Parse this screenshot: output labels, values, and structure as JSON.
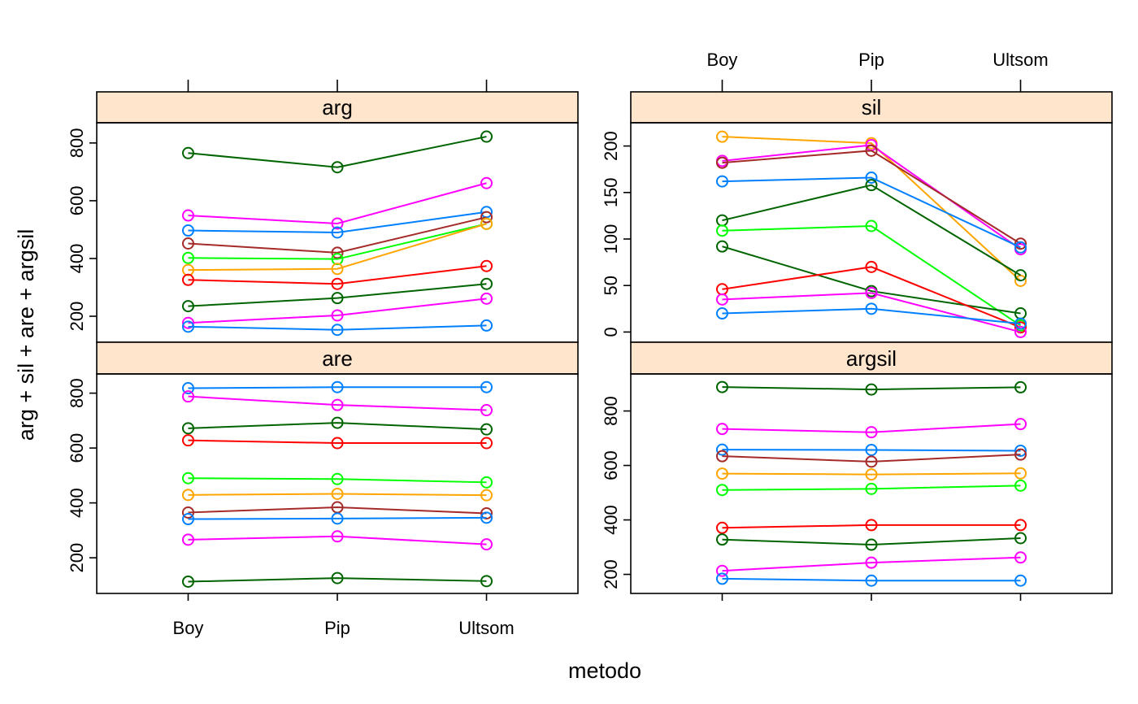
{
  "chart_data": {
    "type": "line",
    "xlabel": "metodo",
    "ylabel": "arg + sil + are + argsil",
    "categories": [
      "Boy",
      "Pip",
      "Ultsom"
    ],
    "grid": false,
    "panels": [
      {
        "name": "arg",
        "ylim": [
          110,
          870
        ],
        "yticks": [
          200,
          400,
          600,
          800
        ],
        "series": [
          {
            "color": "#006400",
            "values": [
              765,
              716,
              822
            ]
          },
          {
            "color": "#ff00ff",
            "values": [
              549,
              521,
              661
            ]
          },
          {
            "color": "#0080ff",
            "values": [
              497,
              490,
              561
            ]
          },
          {
            "color": "#a52a2a",
            "values": [
              452,
              420,
              543
            ]
          },
          {
            "color": "#00ff00",
            "values": [
              402,
              398,
              520
            ]
          },
          {
            "color": "#ffa500",
            "values": [
              360,
              364,
              520
            ]
          },
          {
            "color": "#ff0000",
            "values": [
              326,
              312,
              374
            ]
          },
          {
            "color": "#006400",
            "values": [
              235,
              263,
              312
            ]
          },
          {
            "color": "#ff00ff",
            "values": [
              177,
              203,
              261
            ]
          },
          {
            "color": "#0080ff",
            "values": [
              164,
              153,
              168
            ]
          }
        ]
      },
      {
        "name": "sil",
        "ylim": [
          -11,
          225
        ],
        "yticks": [
          0,
          50,
          100,
          150,
          200
        ],
        "series": [
          {
            "color": "#ffa500",
            "values": [
              210,
              203,
              55
            ]
          },
          {
            "color": "#ff00ff",
            "values": [
              184,
              201,
              89
            ]
          },
          {
            "color": "#a52a2a",
            "values": [
              182,
              195,
              95
            ]
          },
          {
            "color": "#0080ff",
            "values": [
              162,
              166,
              91
            ]
          },
          {
            "color": "#006400",
            "values": [
              120,
              158,
              61
            ]
          },
          {
            "color": "#00ff00",
            "values": [
              109,
              114,
              7
            ]
          },
          {
            "color": "#006400",
            "values": [
              92,
              44,
              20
            ]
          },
          {
            "color": "#ff0000",
            "values": [
              46,
              70,
              5
            ]
          },
          {
            "color": "#ff00ff",
            "values": [
              35,
              42,
              0
            ]
          },
          {
            "color": "#0080ff",
            "values": [
              20,
              25,
              9
            ]
          }
        ]
      },
      {
        "name": "are",
        "ylim": [
          70,
          870
        ],
        "yticks": [
          200,
          400,
          600,
          800
        ],
        "series": [
          {
            "color": "#0080ff",
            "values": [
              818,
              822,
              822
            ]
          },
          {
            "color": "#ff00ff",
            "values": [
              788,
              757,
              738
            ]
          },
          {
            "color": "#006400",
            "values": [
              672,
              692,
              668
            ]
          },
          {
            "color": "#ff0000",
            "values": [
              628,
              618,
              618
            ]
          },
          {
            "color": "#00ff00",
            "values": [
              490,
              487,
              475
            ]
          },
          {
            "color": "#ffa500",
            "values": [
              429,
              433,
              428
            ]
          },
          {
            "color": "#a52a2a",
            "values": [
              365,
              384,
              362
            ]
          },
          {
            "color": "#0080ff",
            "values": [
              341,
              343,
              346
            ]
          },
          {
            "color": "#ff00ff",
            "values": [
              266,
              278,
              249
            ]
          },
          {
            "color": "#006400",
            "values": [
              113,
              126,
              115
            ]
          }
        ]
      },
      {
        "name": "argsil",
        "ylim": [
          130,
          936
        ],
        "yticks": [
          200,
          400,
          600,
          800
        ],
        "series": [
          {
            "color": "#006400",
            "values": [
              888,
              879,
              887
            ]
          },
          {
            "color": "#ff00ff",
            "values": [
              734,
              722,
              752
            ]
          },
          {
            "color": "#0080ff",
            "values": [
              658,
              657,
              654
            ]
          },
          {
            "color": "#a52a2a",
            "values": [
              634,
              614,
              640
            ]
          },
          {
            "color": "#ffa500",
            "values": [
              570,
              567,
              571
            ]
          },
          {
            "color": "#00ff00",
            "values": [
              510,
              514,
              526
            ]
          },
          {
            "color": "#ff0000",
            "values": [
              371,
              381,
              381
            ]
          },
          {
            "color": "#006400",
            "values": [
              328,
              309,
              333
            ]
          },
          {
            "color": "#ff00ff",
            "values": [
              213,
              243,
              262
            ]
          },
          {
            "color": "#0080ff",
            "values": [
              184,
              177,
              177
            ]
          }
        ]
      }
    ]
  }
}
